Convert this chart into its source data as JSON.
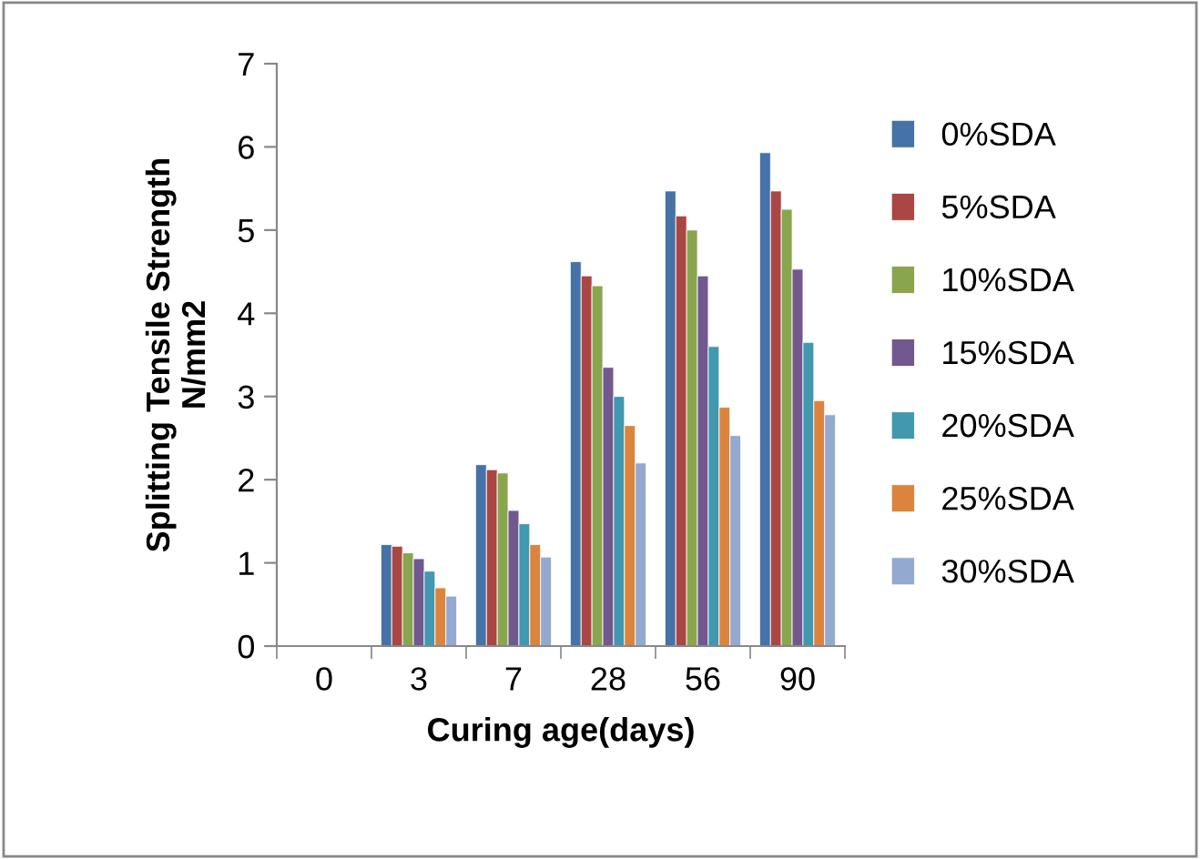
{
  "chart_data": {
    "type": "bar",
    "xlabel": "Curing age(days)",
    "ylabel": "Splitting Tensile Strength\nN/mm2",
    "categories": [
      "0",
      "3",
      "7",
      "28",
      "56",
      "90"
    ],
    "series": [
      {
        "name": "0%SDA",
        "color": "#4572a7",
        "values": [
          null,
          1.22,
          2.18,
          4.62,
          5.47,
          5.93
        ]
      },
      {
        "name": "5%SDA",
        "color": "#aa4643",
        "values": [
          null,
          1.2,
          2.12,
          4.45,
          5.17,
          5.47
        ]
      },
      {
        "name": "10%SDA",
        "color": "#89a54e",
        "values": [
          null,
          1.12,
          2.08,
          4.33,
          5.0,
          5.25
        ]
      },
      {
        "name": "15%SDA",
        "color": "#71588f",
        "values": [
          null,
          1.05,
          1.63,
          3.35,
          4.45,
          4.53
        ]
      },
      {
        "name": "20%SDA",
        "color": "#4198af",
        "values": [
          null,
          0.9,
          1.47,
          3.0,
          3.6,
          3.65
        ]
      },
      {
        "name": "25%SDA",
        "color": "#db843d",
        "values": [
          null,
          0.7,
          1.22,
          2.65,
          2.87,
          2.95
        ]
      },
      {
        "name": "30%SDA",
        "color": "#93a9cf",
        "values": [
          null,
          0.6,
          1.07,
          2.2,
          2.53,
          2.78
        ]
      }
    ],
    "ylim": [
      0,
      7
    ],
    "yticks": [
      0,
      1,
      2,
      3,
      4,
      5,
      6,
      7
    ],
    "grid": false,
    "legend": "right"
  }
}
